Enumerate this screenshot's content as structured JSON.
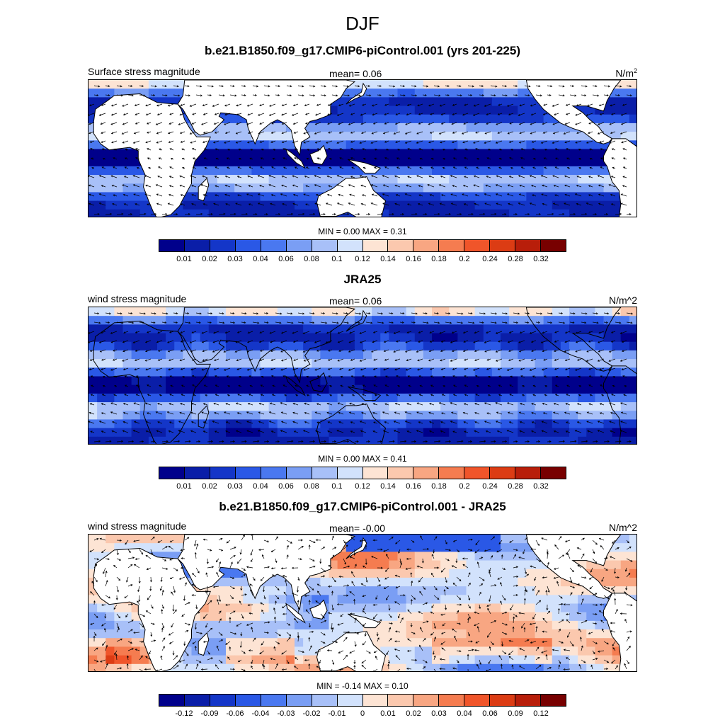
{
  "page_title": "DJF",
  "colors": {
    "palette": [
      "#00008b",
      "#0a1ea8",
      "#1436c8",
      "#2a58e6",
      "#4a78f0",
      "#7a9ef4",
      "#a8c0f8",
      "#d2e2fc",
      "#fde4d4",
      "#fbc8ae",
      "#f8a682",
      "#f57c50",
      "#f0552a",
      "#dc3c14",
      "#b81e0a",
      "#780000"
    ],
    "land": "#ffffff",
    "coast": "#000000"
  },
  "panels": [
    {
      "title": "b.e21.B1850.f09_g17.CMIP6-piControl.001 (yrs 201-225)",
      "left_label": "Surface stress magnitude",
      "mean_label": "mean=   0.06",
      "units_base": "N/m",
      "units_sup": "2",
      "minmax": "MIN =   0.00 MAX =   0.31",
      "ticks": [
        "0.01",
        "0.02",
        "0.03",
        "0.04",
        "0.06",
        "0.08",
        "0.1",
        "0.12",
        "0.14",
        "0.16",
        "0.18",
        "0.2",
        "0.24",
        "0.28",
        "0.32"
      ],
      "field": "model"
    },
    {
      "title": "JRA25",
      "left_label": "wind stress magnitude",
      "mean_label": "mean=   0.06",
      "units_base": "N/m^2",
      "units_sup": "",
      "minmax": "MIN =   0.00 MAX =   0.41",
      "ticks": [
        "0.01",
        "0.02",
        "0.03",
        "0.04",
        "0.06",
        "0.08",
        "0.1",
        "0.12",
        "0.14",
        "0.16",
        "0.18",
        "0.2",
        "0.24",
        "0.28",
        "0.32"
      ],
      "field": "obs"
    },
    {
      "title": "b.e21.B1850.f09_g17.CMIP6-piControl.001 - JRA25",
      "left_label": "wind stress magnitude",
      "mean_label": "mean=  -0.00",
      "units_base": "N/m^2",
      "units_sup": "",
      "minmax": "MIN =  -0.14 MAX =   0.10",
      "ticks": [
        "-0.12",
        "-0.09",
        "-0.06",
        "-0.04",
        "-0.03",
        "-0.02",
        "-0.01",
        "0",
        "0.01",
        "0.02",
        "0.03",
        "0.04",
        "0.06",
        "0.09",
        "0.12"
      ],
      "field": "diff"
    }
  ]
}
